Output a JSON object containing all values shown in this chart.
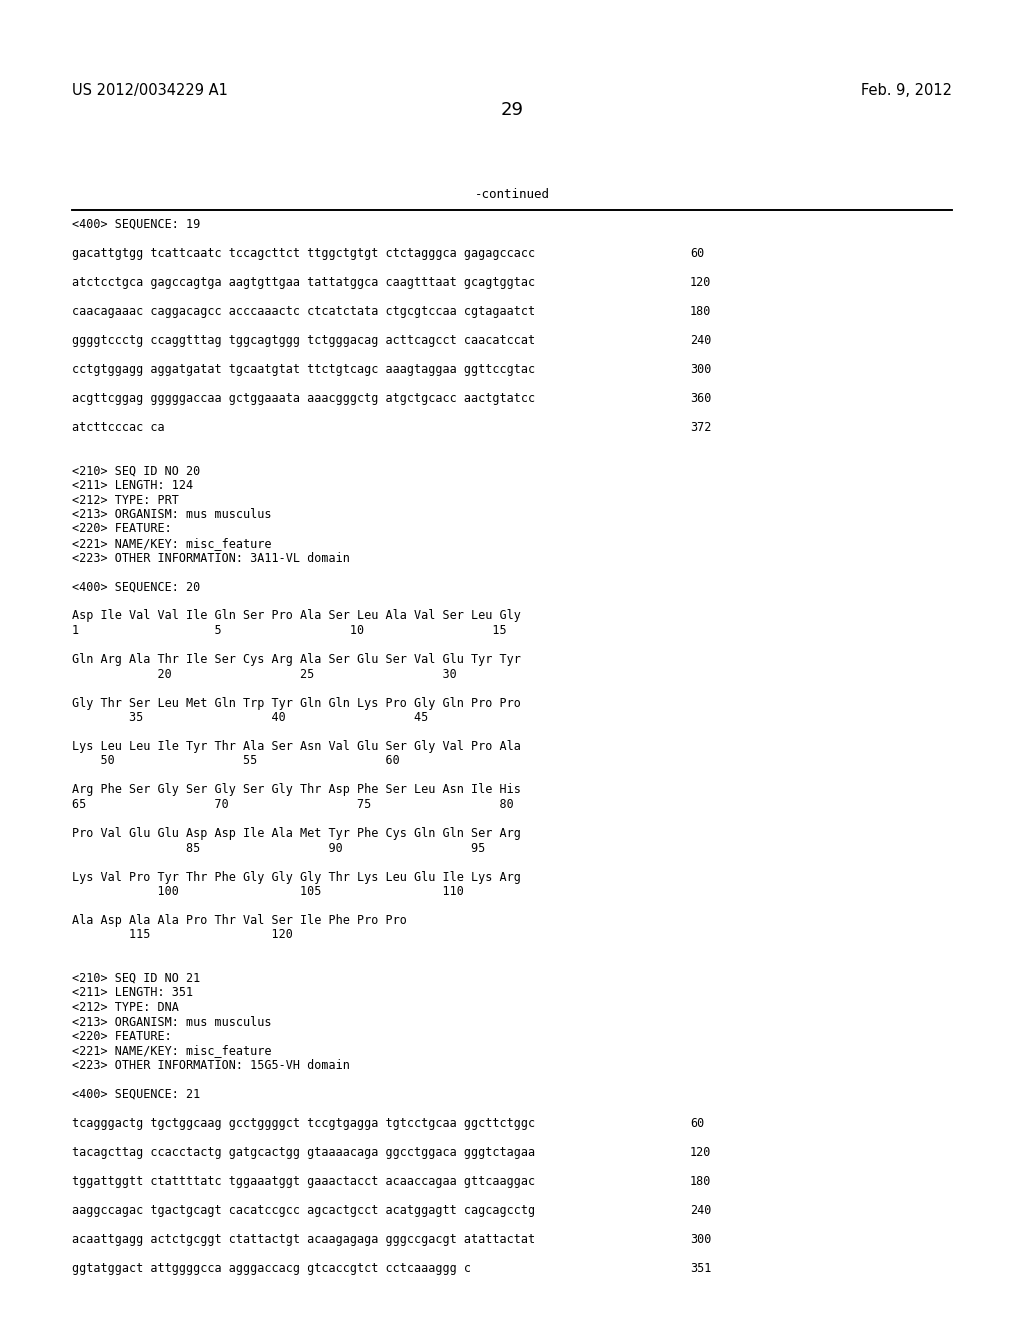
{
  "header_left": "US 2012/0034229 A1",
  "header_right": "Feb. 9, 2012",
  "page_number": "29",
  "continued_text": "-continued",
  "background_color": "#ffffff",
  "text_color": "#000000",
  "mono_size": 8.5,
  "header_size": 10.5,
  "page_num_size": 12,
  "content": [
    {
      "text": "<400> SEQUENCE: 19",
      "indent": 0,
      "type": "mono",
      "num": null
    },
    {
      "text": "",
      "indent": 0,
      "type": "blank",
      "num": null
    },
    {
      "text": "gacattgtgg tcattcaatc tccagcttct ttggctgtgt ctctagggca gagagccacc",
      "indent": 0,
      "type": "mono",
      "num": "60"
    },
    {
      "text": "",
      "indent": 0,
      "type": "blank",
      "num": null
    },
    {
      "text": "atctcctgca gagccagtga aagtgttgaa tattatggca caagtttaat gcagtggtac",
      "indent": 0,
      "type": "mono",
      "num": "120"
    },
    {
      "text": "",
      "indent": 0,
      "type": "blank",
      "num": null
    },
    {
      "text": "caacagaaac caggacagcc acccaaactc ctcatctata ctgcgtccaa cgtagaatct",
      "indent": 0,
      "type": "mono",
      "num": "180"
    },
    {
      "text": "",
      "indent": 0,
      "type": "blank",
      "num": null
    },
    {
      "text": "ggggtccctg ccaggtttag tggcagtggg tctgggacag acttcagcct caacatccat",
      "indent": 0,
      "type": "mono",
      "num": "240"
    },
    {
      "text": "",
      "indent": 0,
      "type": "blank",
      "num": null
    },
    {
      "text": "cctgtggagg aggatgatat tgcaatgtat ttctgtcagc aaagtaggaa ggttccgtac",
      "indent": 0,
      "type": "mono",
      "num": "300"
    },
    {
      "text": "",
      "indent": 0,
      "type": "blank",
      "num": null
    },
    {
      "text": "acgttcggag gggggaccaa gctggaaata aaacgggctg atgctgcacc aactgtatcc",
      "indent": 0,
      "type": "mono",
      "num": "360"
    },
    {
      "text": "",
      "indent": 0,
      "type": "blank",
      "num": null
    },
    {
      "text": "atcttcccac ca",
      "indent": 0,
      "type": "mono",
      "num": "372"
    },
    {
      "text": "",
      "indent": 0,
      "type": "blank",
      "num": null
    },
    {
      "text": "",
      "indent": 0,
      "type": "blank",
      "num": null
    },
    {
      "text": "<210> SEQ ID NO 20",
      "indent": 0,
      "type": "mono",
      "num": null
    },
    {
      "text": "<211> LENGTH: 124",
      "indent": 0,
      "type": "mono",
      "num": null
    },
    {
      "text": "<212> TYPE: PRT",
      "indent": 0,
      "type": "mono",
      "num": null
    },
    {
      "text": "<213> ORGANISM: mus musculus",
      "indent": 0,
      "type": "mono",
      "num": null
    },
    {
      "text": "<220> FEATURE:",
      "indent": 0,
      "type": "mono",
      "num": null
    },
    {
      "text": "<221> NAME/KEY: misc_feature",
      "indent": 0,
      "type": "mono",
      "num": null
    },
    {
      "text": "<223> OTHER INFORMATION: 3A11-VL domain",
      "indent": 0,
      "type": "mono",
      "num": null
    },
    {
      "text": "",
      "indent": 0,
      "type": "blank",
      "num": null
    },
    {
      "text": "<400> SEQUENCE: 20",
      "indent": 0,
      "type": "mono",
      "num": null
    },
    {
      "text": "",
      "indent": 0,
      "type": "blank",
      "num": null
    },
    {
      "text": "Asp Ile Val Val Ile Gln Ser Pro Ala Ser Leu Ala Val Ser Leu Gly",
      "indent": 0,
      "type": "mono",
      "num": null
    },
    {
      "text": "1                   5                  10                  15",
      "indent": 0,
      "type": "mono",
      "num": null
    },
    {
      "text": "",
      "indent": 0,
      "type": "blank",
      "num": null
    },
    {
      "text": "Gln Arg Ala Thr Ile Ser Cys Arg Ala Ser Glu Ser Val Glu Tyr Tyr",
      "indent": 0,
      "type": "mono",
      "num": null
    },
    {
      "text": "            20                  25                  30",
      "indent": 0,
      "type": "mono",
      "num": null
    },
    {
      "text": "",
      "indent": 0,
      "type": "blank",
      "num": null
    },
    {
      "text": "Gly Thr Ser Leu Met Gln Trp Tyr Gln Gln Lys Pro Gly Gln Pro Pro",
      "indent": 0,
      "type": "mono",
      "num": null
    },
    {
      "text": "        35                  40                  45",
      "indent": 0,
      "type": "mono",
      "num": null
    },
    {
      "text": "",
      "indent": 0,
      "type": "blank",
      "num": null
    },
    {
      "text": "Lys Leu Leu Ile Tyr Thr Ala Ser Asn Val Glu Ser Gly Val Pro Ala",
      "indent": 0,
      "type": "mono",
      "num": null
    },
    {
      "text": "    50                  55                  60",
      "indent": 0,
      "type": "mono",
      "num": null
    },
    {
      "text": "",
      "indent": 0,
      "type": "blank",
      "num": null
    },
    {
      "text": "Arg Phe Ser Gly Ser Gly Ser Gly Thr Asp Phe Ser Leu Asn Ile His",
      "indent": 0,
      "type": "mono",
      "num": null
    },
    {
      "text": "65                  70                  75                  80",
      "indent": 0,
      "type": "mono",
      "num": null
    },
    {
      "text": "",
      "indent": 0,
      "type": "blank",
      "num": null
    },
    {
      "text": "Pro Val Glu Glu Asp Asp Ile Ala Met Tyr Phe Cys Gln Gln Ser Arg",
      "indent": 0,
      "type": "mono",
      "num": null
    },
    {
      "text": "                85                  90                  95",
      "indent": 0,
      "type": "mono",
      "num": null
    },
    {
      "text": "",
      "indent": 0,
      "type": "blank",
      "num": null
    },
    {
      "text": "Lys Val Pro Tyr Thr Phe Gly Gly Gly Thr Lys Leu Glu Ile Lys Arg",
      "indent": 0,
      "type": "mono",
      "num": null
    },
    {
      "text": "            100                 105                 110",
      "indent": 0,
      "type": "mono",
      "num": null
    },
    {
      "text": "",
      "indent": 0,
      "type": "blank",
      "num": null
    },
    {
      "text": "Ala Asp Ala Ala Pro Thr Val Ser Ile Phe Pro Pro",
      "indent": 0,
      "type": "mono",
      "num": null
    },
    {
      "text": "        115                 120",
      "indent": 0,
      "type": "mono",
      "num": null
    },
    {
      "text": "",
      "indent": 0,
      "type": "blank",
      "num": null
    },
    {
      "text": "",
      "indent": 0,
      "type": "blank",
      "num": null
    },
    {
      "text": "<210> SEQ ID NO 21",
      "indent": 0,
      "type": "mono",
      "num": null
    },
    {
      "text": "<211> LENGTH: 351",
      "indent": 0,
      "type": "mono",
      "num": null
    },
    {
      "text": "<212> TYPE: DNA",
      "indent": 0,
      "type": "mono",
      "num": null
    },
    {
      "text": "<213> ORGANISM: mus musculus",
      "indent": 0,
      "type": "mono",
      "num": null
    },
    {
      "text": "<220> FEATURE:",
      "indent": 0,
      "type": "mono",
      "num": null
    },
    {
      "text": "<221> NAME/KEY: misc_feature",
      "indent": 0,
      "type": "mono",
      "num": null
    },
    {
      "text": "<223> OTHER INFORMATION: 15G5-VH domain",
      "indent": 0,
      "type": "mono",
      "num": null
    },
    {
      "text": "",
      "indent": 0,
      "type": "blank",
      "num": null
    },
    {
      "text": "<400> SEQUENCE: 21",
      "indent": 0,
      "type": "mono",
      "num": null
    },
    {
      "text": "",
      "indent": 0,
      "type": "blank",
      "num": null
    },
    {
      "text": "tcagggactg tgctggcaag gcctggggct tccgtgagga tgtcctgcaa ggcttctggc",
      "indent": 0,
      "type": "mono",
      "num": "60"
    },
    {
      "text": "",
      "indent": 0,
      "type": "blank",
      "num": null
    },
    {
      "text": "tacagcttag ccacctactg gatgcactgg gtaaaacaga ggcctggaca gggtctagaa",
      "indent": 0,
      "type": "mono",
      "num": "120"
    },
    {
      "text": "",
      "indent": 0,
      "type": "blank",
      "num": null
    },
    {
      "text": "tggattggtt ctattttatc tggaaatggt gaaactacct acaaccagaa gttcaaggac",
      "indent": 0,
      "type": "mono",
      "num": "180"
    },
    {
      "text": "",
      "indent": 0,
      "type": "blank",
      "num": null
    },
    {
      "text": "aaggccagac tgactgcagt cacatccgcc agcactgcct acatggagtt cagcagcctg",
      "indent": 0,
      "type": "mono",
      "num": "240"
    },
    {
      "text": "",
      "indent": 0,
      "type": "blank",
      "num": null
    },
    {
      "text": "acaattgagg actctgcggt ctattactgt acaagagaga gggccgacgt atattactat",
      "indent": 0,
      "type": "mono",
      "num": "300"
    },
    {
      "text": "",
      "indent": 0,
      "type": "blank",
      "num": null
    },
    {
      "text": "ggtatggact attggggcca agggaccacg gtcaccgtct cctcaaaggg c",
      "indent": 0,
      "type": "mono",
      "num": "351"
    }
  ]
}
